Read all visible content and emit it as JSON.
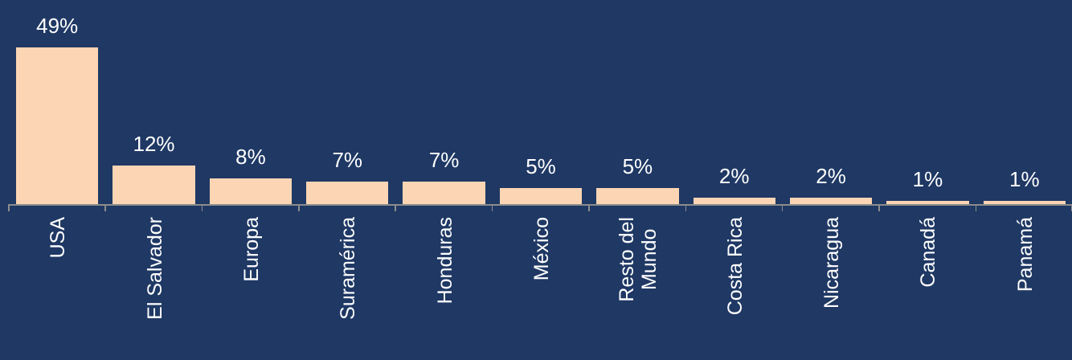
{
  "chart_data": {
    "type": "bar",
    "categories": [
      "USA",
      "El Salvador",
      "Europa",
      "Suramérica",
      "Honduras",
      "México",
      "Resto del\nMundo",
      "Costa Rica",
      "Nicaragua",
      "Canadá",
      "Panamá"
    ],
    "values": [
      49,
      12,
      8,
      7,
      7,
      5,
      5,
      2,
      2,
      1,
      1
    ],
    "value_labels": [
      "49%",
      "12%",
      "8%",
      "7%",
      "7%",
      "5%",
      "5%",
      "2%",
      "2%",
      "1%",
      "1%"
    ],
    "color": "#fcd5b4"
  }
}
